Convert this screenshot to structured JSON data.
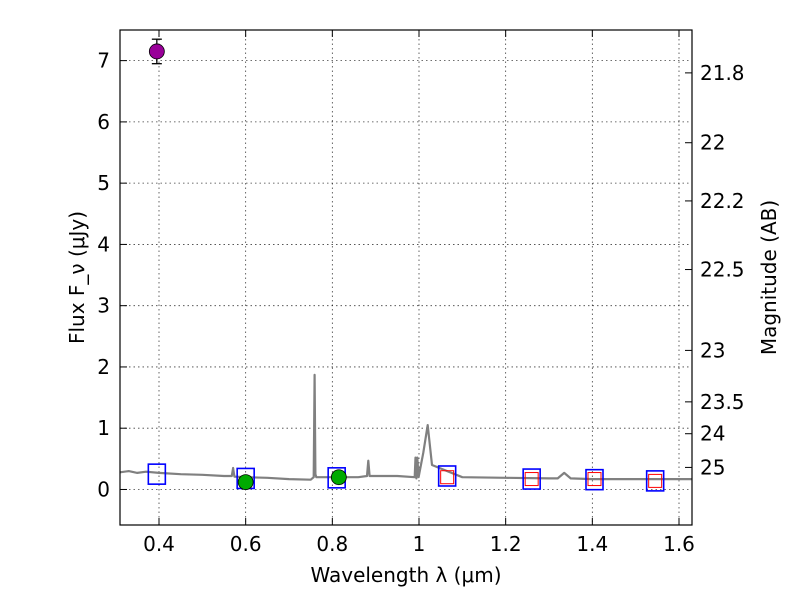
{
  "chart_data": {
    "type": "scatter",
    "xlabel": "Wavelength λ (μm)",
    "ylabel": "Flux F_ν (μJy)",
    "ylabel_right": "Magnitude (AB)",
    "xlim": [
      0.31,
      1.63
    ],
    "ylim": [
      -0.58,
      7.5
    ],
    "grid": true,
    "x_ticks": [
      {
        "value": 0.4,
        "label": "0.4"
      },
      {
        "value": 0.6,
        "label": "0.6"
      },
      {
        "value": 0.8,
        "label": "0.8"
      },
      {
        "value": 1.0,
        "label": "1"
      },
      {
        "value": 1.2,
        "label": "1.2"
      },
      {
        "value": 1.4,
        "label": "1.4"
      },
      {
        "value": 1.6,
        "label": "1.6"
      }
    ],
    "y_ticks": [
      {
        "value": 0,
        "label": "0"
      },
      {
        "value": 1,
        "label": "1"
      },
      {
        "value": 2,
        "label": "2"
      },
      {
        "value": 3,
        "label": "3"
      },
      {
        "value": 4,
        "label": "4"
      },
      {
        "value": 5,
        "label": "5"
      },
      {
        "value": 6,
        "label": "6"
      },
      {
        "value": 7,
        "label": "7"
      }
    ],
    "right_ticks": [
      {
        "flux": 6.8,
        "label": "21.8"
      },
      {
        "flux": 5.66,
        "label": "22"
      },
      {
        "flux": 4.71,
        "label": "22.2"
      },
      {
        "flux": 3.59,
        "label": "22.5"
      },
      {
        "flux": 2.27,
        "label": "23"
      },
      {
        "flux": 1.43,
        "label": "23.5"
      },
      {
        "flux": 0.91,
        "label": "24"
      },
      {
        "flux": 0.36,
        "label": "25"
      }
    ],
    "model_spectrum": {
      "color": "#808080",
      "x": [
        0.31,
        0.33,
        0.35,
        0.37,
        0.4,
        0.45,
        0.5,
        0.55,
        0.568,
        0.571,
        0.574,
        0.6,
        0.65,
        0.7,
        0.75,
        0.757,
        0.759,
        0.761,
        0.763,
        0.8,
        0.86,
        0.88,
        0.883,
        0.886,
        0.95,
        0.99,
        0.992,
        0.994,
        0.996,
        0.999,
        1.01,
        1.02,
        1.03,
        1.1,
        1.2,
        1.3,
        1.32,
        1.335,
        1.35,
        1.4,
        1.5,
        1.6,
        1.63
      ],
      "y": [
        0.28,
        0.3,
        0.27,
        0.29,
        0.27,
        0.25,
        0.24,
        0.22,
        0.22,
        0.35,
        0.21,
        0.2,
        0.19,
        0.17,
        0.16,
        0.2,
        1.87,
        0.25,
        0.2,
        0.2,
        0.2,
        0.22,
        0.47,
        0.22,
        0.22,
        0.2,
        0.52,
        0.18,
        0.52,
        0.2,
        0.6,
        1.05,
        0.4,
        0.2,
        0.19,
        0.18,
        0.18,
        0.27,
        0.18,
        0.17,
        0.17,
        0.17,
        0.17
      ]
    },
    "model_photometry": {
      "marker": "open-square",
      "color": "#0000ff",
      "x": [
        0.395,
        0.6,
        0.81,
        1.065,
        1.26,
        1.405,
        1.545
      ],
      "y": [
        0.25,
        0.18,
        0.19,
        0.22,
        0.17,
        0.16,
        0.14
      ]
    },
    "upper_limits": {
      "marker": "open-square",
      "color": "#ff0000",
      "x": [
        1.065,
        1.26,
        1.405,
        1.545
      ],
      "y": [
        0.2,
        0.17,
        0.17,
        0.14
      ]
    },
    "observed_detections": {
      "marker": "filled-circle",
      "color": "#00aa00",
      "x": [
        0.6,
        0.815
      ],
      "y": [
        0.12,
        0.2
      ],
      "yerr": [
        0.05,
        0.05
      ]
    },
    "observed_uv": {
      "marker": "filled-circle",
      "color": "#990099",
      "x": [
        0.395
      ],
      "y": [
        7.15
      ],
      "yerr": [
        0.2
      ]
    }
  }
}
